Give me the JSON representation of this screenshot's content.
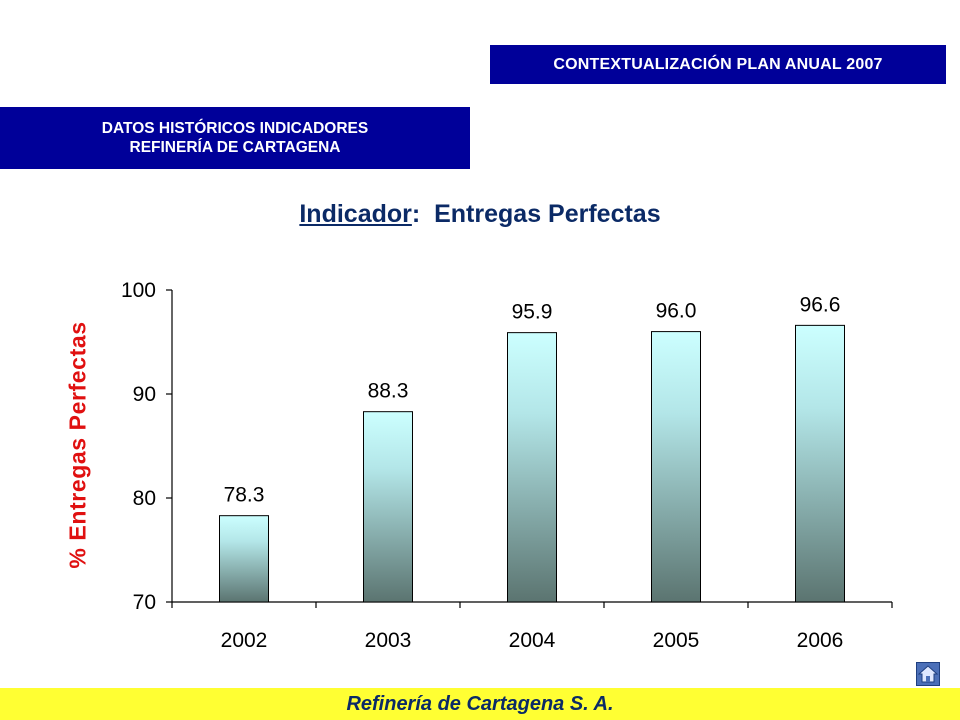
{
  "header": {
    "context_banner": "CONTEXTUALIZACIÓN PLAN ANUAL 2007",
    "section_banner_line1": "DATOS HISTÓRICOS INDICADORES",
    "section_banner_line2": "REFINERÍA DE CARTAGENA"
  },
  "title": {
    "label": "Indicador",
    "separator": ":",
    "text": "Entregas Perfectas"
  },
  "footer": {
    "company": "Refinería de Cartagena S. A."
  },
  "nav": {
    "home_icon": "home-icon"
  },
  "colors": {
    "banner": "#000099",
    "footer": "#ffff33",
    "ylabel": "#e01010",
    "bar_top": "#ccffff",
    "bar_bottom": "#5b7470"
  },
  "chart_data": {
    "type": "bar",
    "title": "Indicador: Entregas Perfectas",
    "ylabel": "% Entregas Perfectas",
    "xlabel": "",
    "categories": [
      "2002",
      "2003",
      "2004",
      "2005",
      "2006"
    ],
    "values": [
      78.3,
      88.3,
      95.9,
      96.0,
      96.6
    ],
    "value_labels": [
      "78.3",
      "88.3",
      "95.9",
      "96.0",
      "96.6"
    ],
    "ylim": [
      70,
      100
    ],
    "yticks": [
      70,
      80,
      90,
      100
    ],
    "grid": false,
    "legend": "none"
  }
}
